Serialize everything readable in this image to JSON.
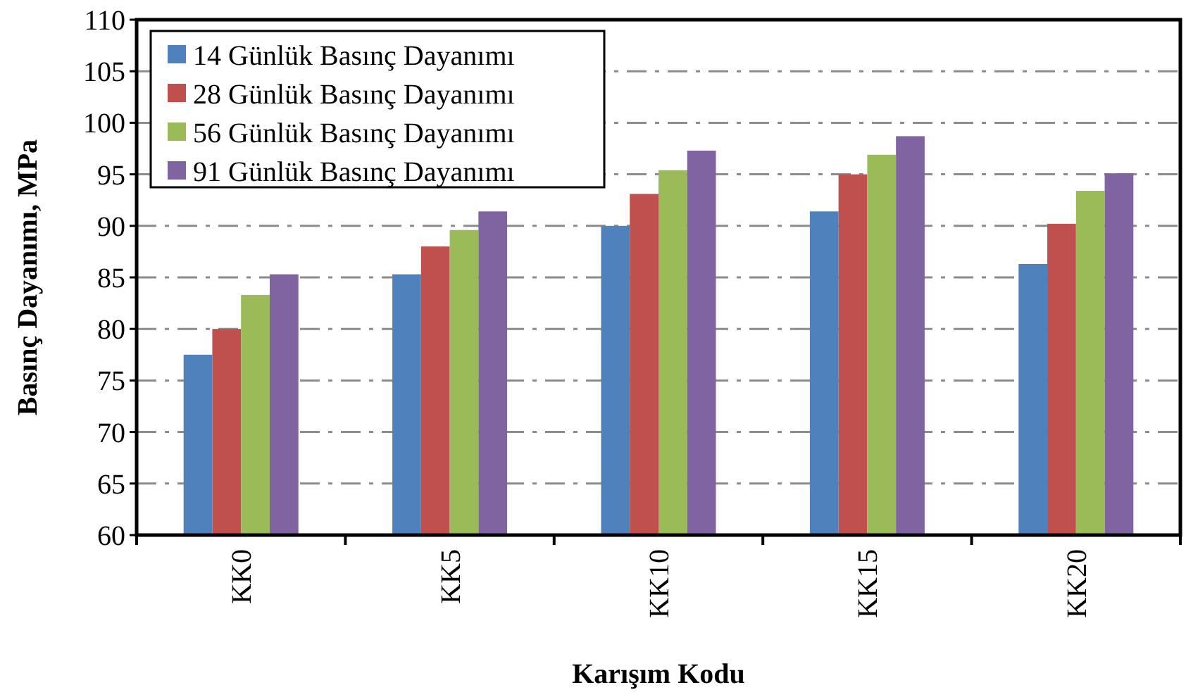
{
  "chart_data": {
    "type": "bar",
    "xlabel": "Karışım Kodu",
    "ylabel": "Basınç Dayanımı, MPa",
    "categories": [
      "KK0",
      "KK5",
      "KK10",
      "KK15",
      "KK20"
    ],
    "series": [
      {
        "name": "14 Günlük Basınç Dayanımı",
        "color": "#4f81bd",
        "values": [
          77.5,
          85.3,
          90.0,
          91.4,
          86.3
        ]
      },
      {
        "name": "28 Günlük Basınç Dayanımı",
        "color": "#c0504d",
        "values": [
          80.0,
          88.0,
          93.1,
          95.0,
          90.2
        ]
      },
      {
        "name": "56 Günlük Basınç Dayanımı",
        "color": "#9bbb59",
        "values": [
          83.3,
          89.6,
          95.4,
          96.9,
          93.4
        ]
      },
      {
        "name": "91 Günlük Basınç Dayanımı",
        "color": "#8064a2",
        "values": [
          85.3,
          91.4,
          97.3,
          98.7,
          95.1
        ]
      }
    ],
    "ylim": [
      60,
      110
    ],
    "yticks": [
      60,
      65,
      70,
      75,
      80,
      85,
      90,
      95,
      100,
      105,
      110
    ],
    "grid": "y",
    "line_style": "dashed",
    "legend": "top left"
  }
}
